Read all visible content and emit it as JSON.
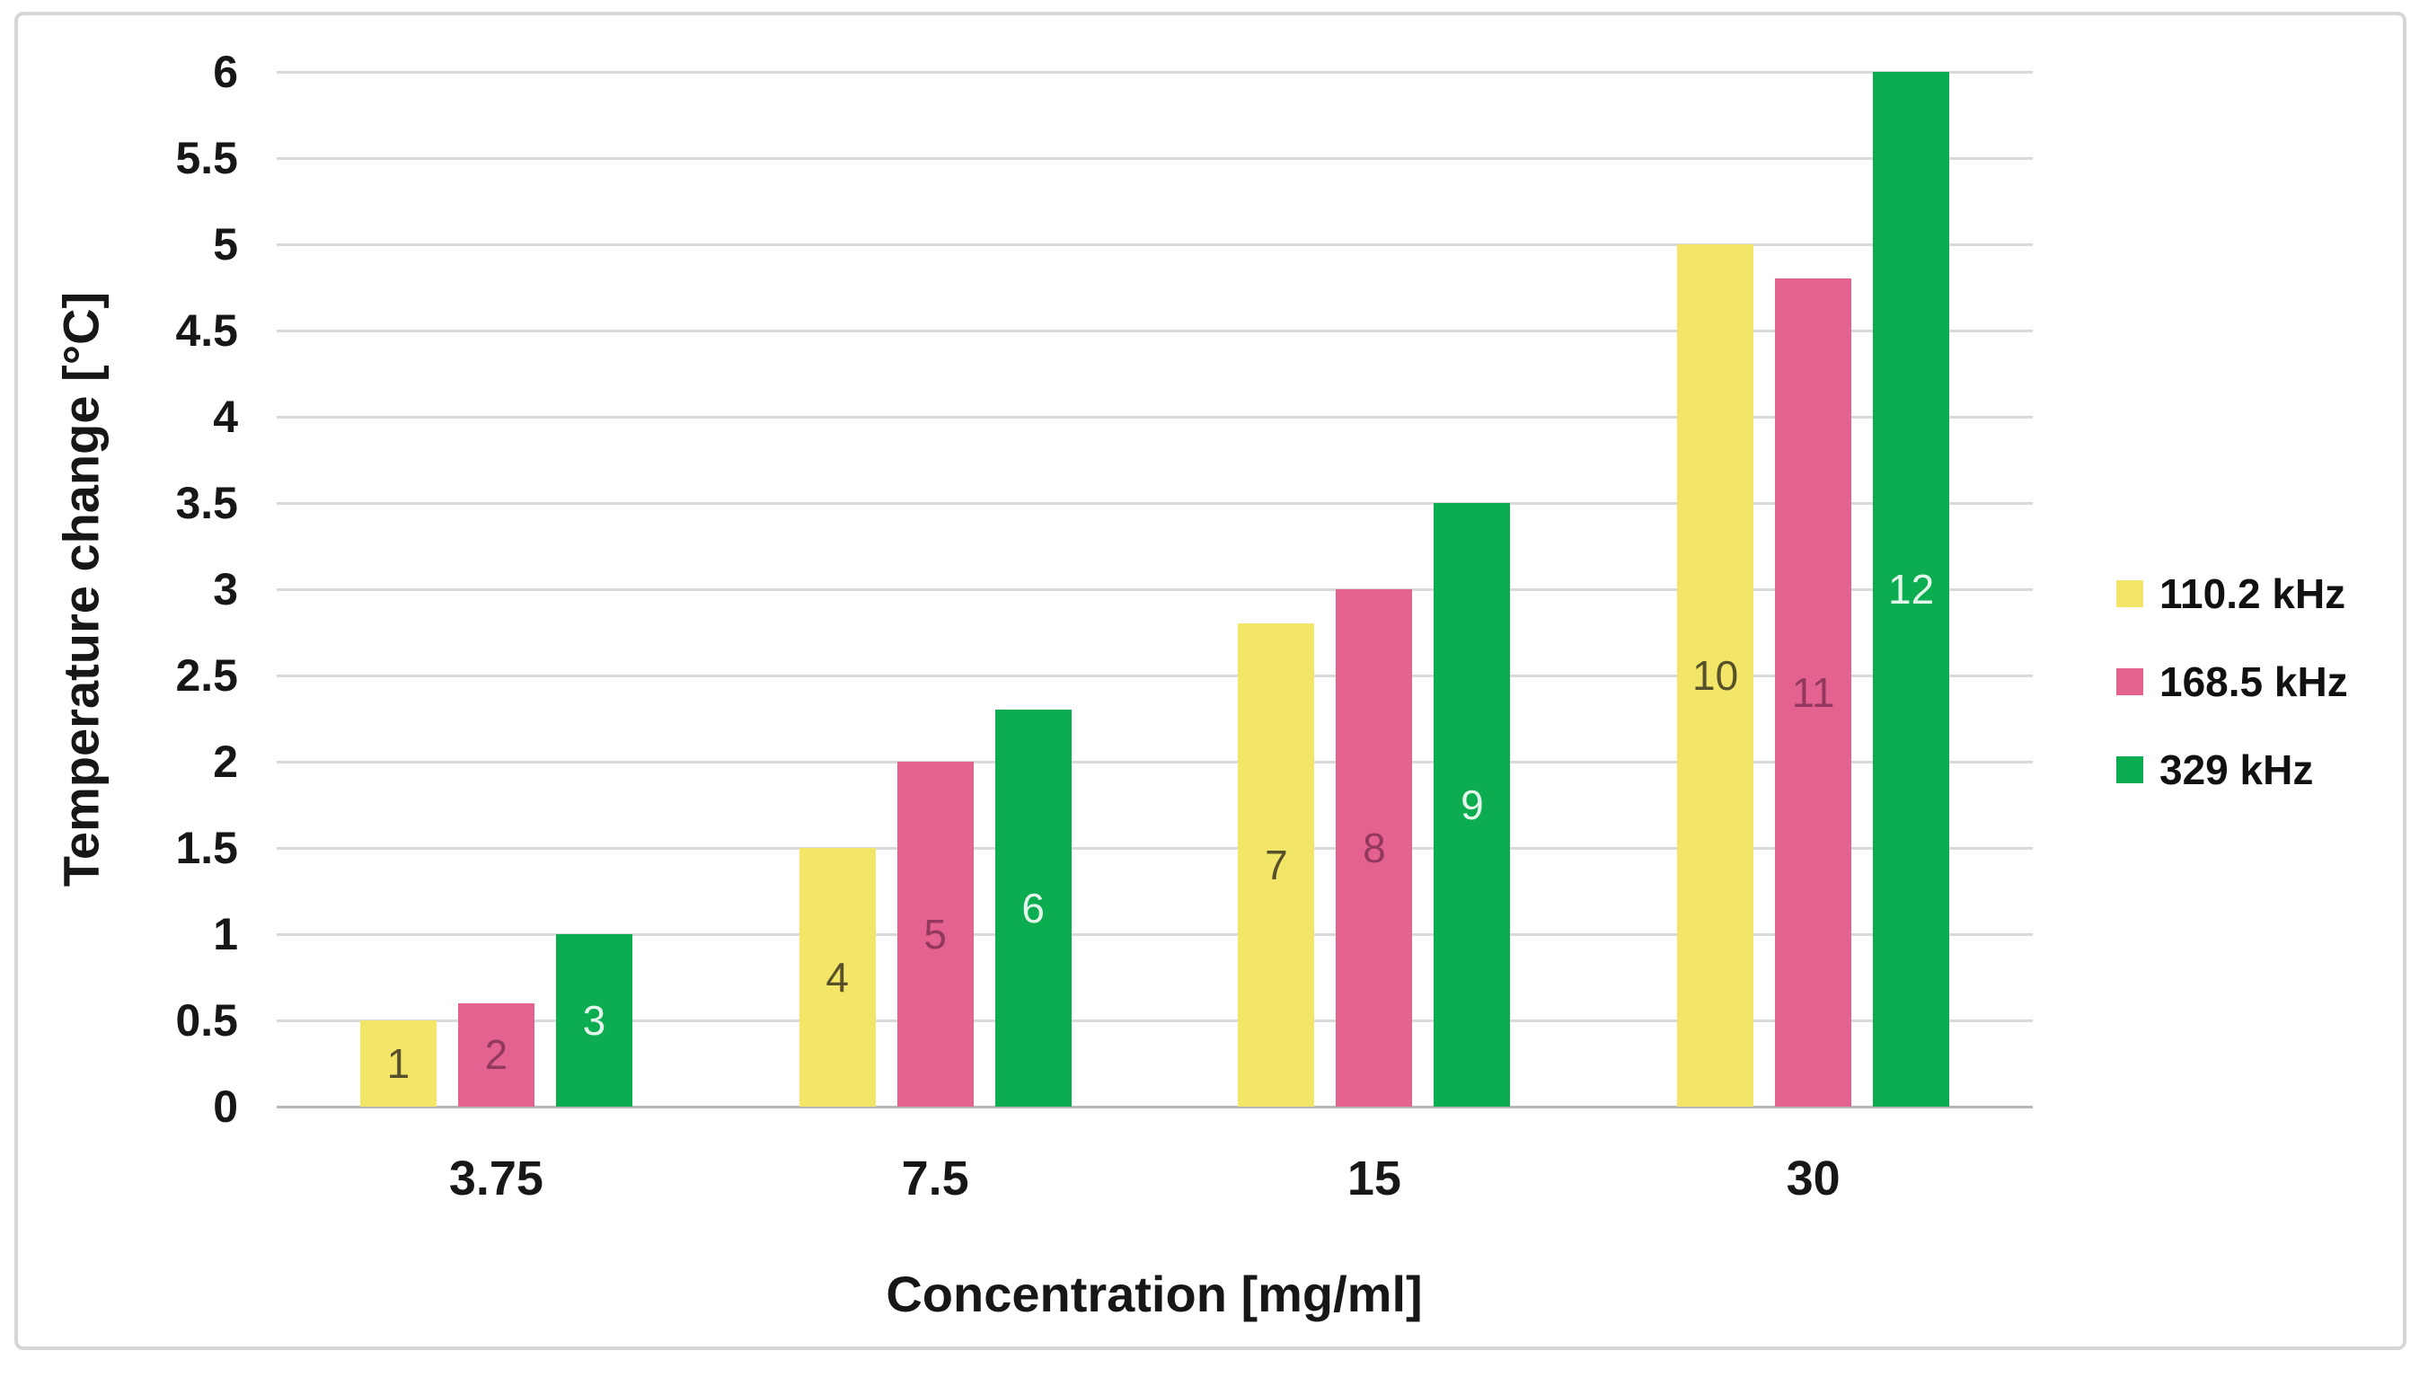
{
  "chart_data": {
    "type": "bar",
    "title": "",
    "xlabel": "Concentration [mg/ml]",
    "ylabel": "Temperature change [°C]",
    "categories": [
      "3.75",
      "7.5",
      "15",
      "30"
    ],
    "series": [
      {
        "name": "110.2 kHz",
        "color": "#F3E567",
        "label_color": "#56512A",
        "values": [
          0.5,
          1.5,
          2.8,
          5.0
        ],
        "bar_labels": [
          "1",
          "4",
          "7",
          "10"
        ]
      },
      {
        "name": "168.5 kHz",
        "color": "#E4628F",
        "label_color": "#93395F",
        "values": [
          0.6,
          2.0,
          3.0,
          4.8
        ],
        "bar_labels": [
          "2",
          "5",
          "8",
          "11"
        ]
      },
      {
        "name": "329 kHz",
        "color": "#0CAC50",
        "label_color": "#E4F6EB",
        "values": [
          1.0,
          2.3,
          3.5,
          6.0
        ],
        "bar_labels": [
          "3",
          "6",
          "9",
          "12"
        ]
      }
    ],
    "ylim": [
      0,
      6
    ],
    "ytick_step": 0.5,
    "yticks": [
      "0",
      "0.5",
      "1",
      "1.5",
      "2",
      "2.5",
      "3",
      "3.5",
      "4",
      "4.5",
      "5",
      "5.5",
      "6"
    ],
    "grid": true,
    "legend_position": "right",
    "colors": {
      "gridline": "#D9D9D9",
      "axis_line": "#B7B7B7",
      "tick_text": "#171717",
      "frame_border": "#D6D6D6"
    }
  }
}
